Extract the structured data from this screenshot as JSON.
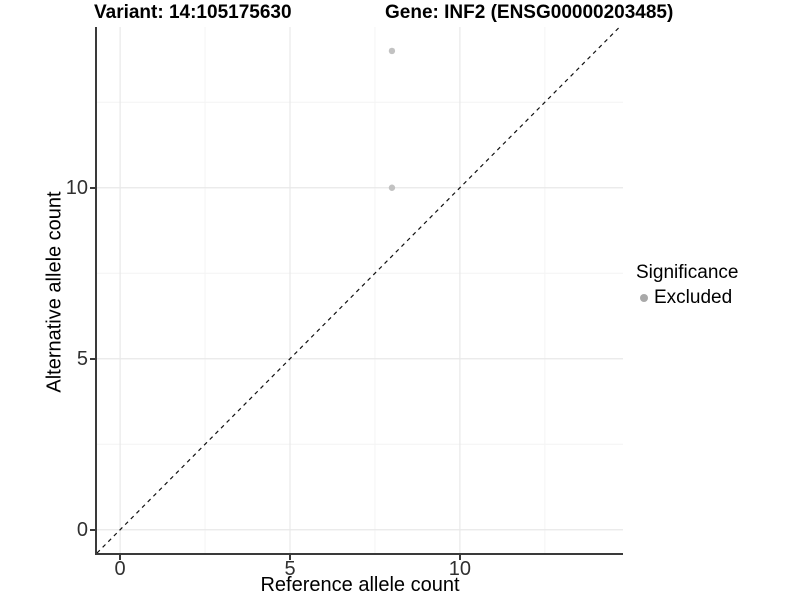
{
  "titles": {
    "left": "Variant: 14:105175630",
    "right": "Gene: INF2 (ENSG00000203485)"
  },
  "chart_data": {
    "type": "scatter",
    "title_left": "Variant: 14:105175630",
    "title_right": "Gene: INF2 (ENSG00000203485)",
    "xlabel": "Reference allele count",
    "ylabel": "Alternative allele count",
    "xlim": [
      -0.68,
      14.8
    ],
    "ylim": [
      -0.68,
      14.7
    ],
    "x_ticks": [
      0,
      5,
      10
    ],
    "y_ticks": [
      0,
      5,
      10
    ],
    "x_minor": [
      2.5,
      7.5,
      12.5
    ],
    "y_minor": [
      2.5,
      7.5,
      12.5
    ],
    "grid": true,
    "grid_major_color": "#e8e8e8",
    "grid_minor_color": "#f4f4f4",
    "axis_line_color": "#3a3a3a",
    "series": [
      {
        "name": "Excluded",
        "color": "#c2c2c2",
        "points": [
          {
            "x": 8,
            "y": 14
          },
          {
            "x": 8,
            "y": 10
          }
        ]
      }
    ],
    "reference_line": {
      "type": "identity y=x",
      "style": "dashed",
      "color": "#111111"
    },
    "legend": {
      "position": "right",
      "title": "Significance",
      "items": [
        {
          "label": "Excluded",
          "color": "#a9a9a9"
        }
      ]
    }
  }
}
